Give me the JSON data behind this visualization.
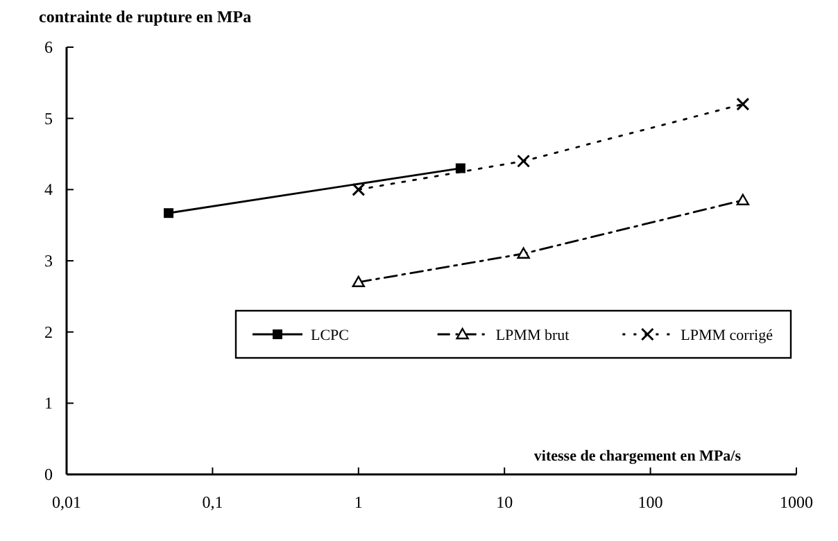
{
  "chart_data": {
    "type": "line",
    "title": "contrainte de rupture en MPa",
    "xlabel": "vitesse de chargement en MPa/s",
    "log": "x",
    "xlim": [
      0.01,
      1000
    ],
    "xticks": [
      {
        "value": 0.01,
        "label": "0,01"
      },
      {
        "value": 0.1,
        "label": "0,1"
      },
      1,
      10,
      100,
      1000
    ],
    "ylim": [
      0,
      6
    ],
    "yticks": [
      0,
      1,
      2,
      3,
      4,
      5,
      6
    ],
    "grid": false,
    "legend": "bottom right",
    "series": [
      {
        "name": "LCPC",
        "color": "#000000",
        "x": [
          0.05,
          5
        ],
        "values": [
          3.67,
          4.3
        ],
        "marker": "square",
        "line_style": "solid"
      },
      {
        "name": "LPMM brut",
        "color": "#000000",
        "x": [
          1,
          13.5,
          430
        ],
        "values": [
          2.7,
          3.1,
          3.85
        ],
        "marker": "triangle",
        "line_style": "dashed"
      },
      {
        "name": "LPMM corrigé",
        "color": "#000000",
        "x": [
          1,
          13.5,
          430
        ],
        "values": [
          4.0,
          4.4,
          5.2
        ],
        "marker": "cross",
        "line_style": "dotted"
      }
    ]
  }
}
